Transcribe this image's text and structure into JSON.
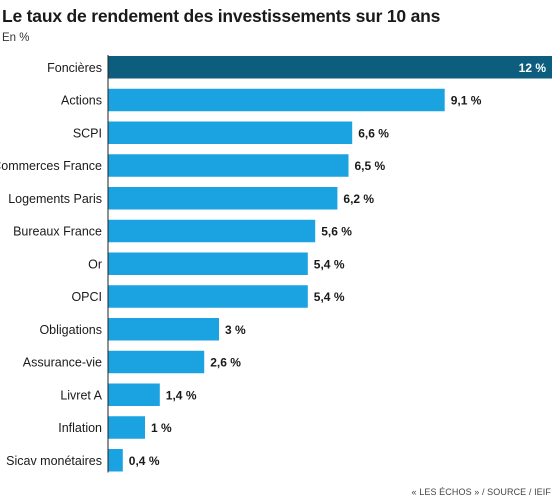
{
  "colors": {
    "bar": "#1aa3e0",
    "highlight_bar": "#0d5e7e",
    "baseline": "#222222"
  },
  "chart_data": {
    "type": "bar",
    "orientation": "horizontal",
    "title": "Le taux de rendement des investissements sur 10 ans",
    "subtitle": "En %",
    "categories": [
      "Foncières",
      "Actions",
      "SCPI",
      "Commerces France",
      "Logements Paris",
      "Bureaux France",
      "Or",
      "OPCI",
      "Obligations",
      "Assurance-vie",
      "Livret A",
      "Inflation",
      "Sicav monétaires"
    ],
    "values": [
      12,
      9.1,
      6.6,
      6.5,
      6.2,
      5.6,
      5.4,
      5.4,
      3,
      2.6,
      1.4,
      1,
      0.4
    ],
    "value_labels": [
      "12 %",
      "9,1 %",
      "6,6 %",
      "6,5 %",
      "6,2 %",
      "5,6 %",
      "5,4 %",
      "5,4 %",
      "3 %",
      "2,6 %",
      "1,4 %",
      "1 %",
      "0,4 %"
    ],
    "highlighted_category": "Foncières",
    "xlim": [
      0,
      12
    ],
    "grid": false,
    "legend": "none"
  },
  "source": "« LES ÉCHOS » / SOURCE / IEIF"
}
